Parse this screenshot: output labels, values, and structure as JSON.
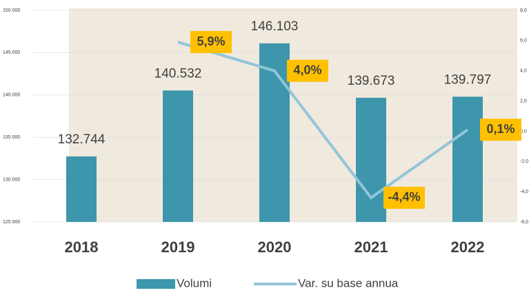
{
  "chart_data": {
    "type": "bar",
    "categories": [
      "2018",
      "2019",
      "2020",
      "2021",
      "2022"
    ],
    "series": [
      {
        "name": "Volumi",
        "type": "bar",
        "color": "#3d96ac",
        "values": [
          132744,
          140532,
          146103,
          139673,
          139797
        ],
        "value_labels": [
          "132.744",
          "140.532",
          "146.103",
          "139.673",
          "139.797"
        ]
      },
      {
        "name": "Var. su base annua",
        "type": "line",
        "axis": "y2",
        "color": "#92c5d9",
        "values": [
          null,
          5.9,
          4.0,
          -4.4,
          0.1
        ],
        "value_labels": [
          null,
          "5,9%",
          "4,0%",
          "-4,4%",
          "0,1%"
        ],
        "label_color": "#ffc000"
      }
    ],
    "ylim": [
      125000,
      150000
    ],
    "yticks": [
      {
        "value": 125000,
        "label": "125.000"
      },
      {
        "value": 130000,
        "label": "130.000"
      },
      {
        "value": 135000,
        "label": "135.000"
      },
      {
        "value": 140000,
        "label": "140.000"
      },
      {
        "value": 145000,
        "label": "145.000"
      },
      {
        "value": 150000,
        "label": "150.000"
      }
    ],
    "y2lim": [
      -6,
      8
    ],
    "y2ticks": [
      {
        "value": -6,
        "label": "-6,0"
      },
      {
        "value": -4,
        "label": "-4,0"
      },
      {
        "value": -2,
        "label": "-2,0"
      },
      {
        "value": 0,
        "label": "0,0"
      },
      {
        "value": 2,
        "label": "2,0"
      },
      {
        "value": 4,
        "label": "4,0"
      },
      {
        "value": 6,
        "label": "6,0"
      },
      {
        "value": 8,
        "label": "8,0"
      }
    ],
    "grid": true,
    "legend": "bottom"
  }
}
